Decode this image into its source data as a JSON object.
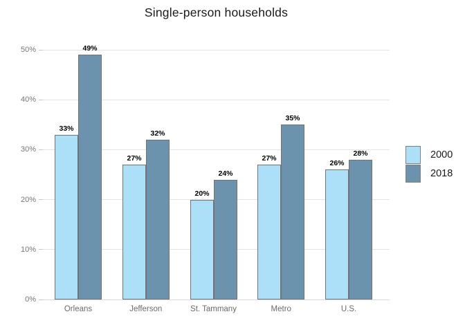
{
  "chart_data": {
    "type": "bar",
    "title": "Single-person households",
    "categories": [
      "Orleans",
      "Jefferson",
      "St. Tammany",
      "Metro",
      "U.S."
    ],
    "series": [
      {
        "name": "2000",
        "color": "#ace0f8",
        "values": [
          33,
          27,
          20,
          27,
          26
        ]
      },
      {
        "name": "2018",
        "color": "#6b93ad",
        "values": [
          49,
          32,
          24,
          35,
          28
        ]
      }
    ],
    "value_label_suffix": "%",
    "ylabel": "",
    "xlabel": "",
    "ylim": [
      0,
      50
    ],
    "yticks": [
      0,
      10,
      20,
      30,
      40,
      50
    ],
    "ytick_labels": [
      "0%",
      "10%",
      "20%",
      "30%",
      "40%",
      "50%"
    ],
    "grid": true,
    "legend_position": "right",
    "colors": {
      "bar_border": "#737373",
      "gridline": "#e3e3e3",
      "axis_baseline": "#d8d8d8",
      "axis_text": "#757575",
      "category_text": "#6b6b6b",
      "value_label_text": "#000000",
      "title_text": "#1a1a1a",
      "legend_swatch_border": "#808080",
      "background": "#ffffff"
    }
  }
}
